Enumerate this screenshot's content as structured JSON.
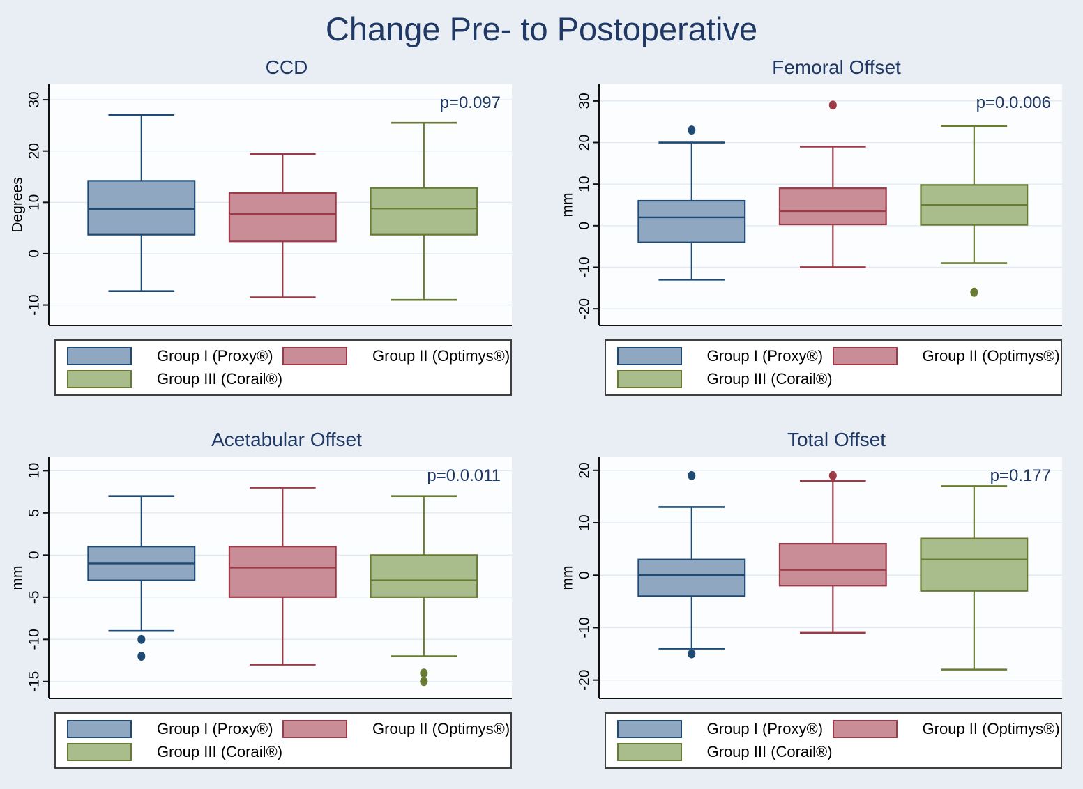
{
  "page": {
    "title": "Change Pre- to Postoperative"
  },
  "colors": {
    "background": "#e9eef4",
    "plot_background": "#fcfdff",
    "gridline": "#e1e9f2",
    "axis": "#111111",
    "title_text": "#203864",
    "tick_text": "#000000",
    "groups": [
      {
        "name": "Group I (Proxy®)",
        "fill": "#8fa7c0",
        "stroke": "#1f4a73"
      },
      {
        "name": "Group II (Optimys®)",
        "fill": "#c88d96",
        "stroke": "#9d3a48"
      },
      {
        "name": "Group III (Corail®)",
        "fill": "#a9bc8b",
        "stroke": "#687b33"
      }
    ]
  },
  "legend": {
    "items": [
      {
        "label": "Group I (Proxy®)"
      },
      {
        "label": "Group II (Optimys®)"
      },
      {
        "label": "Group III (Corail®)"
      }
    ]
  },
  "chart_data": [
    {
      "type": "box",
      "title": "CCD",
      "ylabel": "Degrees",
      "p_label": "p=0.097",
      "ylim": [
        -14,
        33
      ],
      "yticks": [
        -10,
        0,
        10,
        20,
        30
      ],
      "grid": true,
      "legend_position": "bottom",
      "series": [
        {
          "name": "Group I (Proxy®)",
          "whislo": -7.3,
          "q1": 3.7,
          "med": 8.7,
          "q3": 14.2,
          "whishi": 27,
          "outliers": []
        },
        {
          "name": "Group II (Optimys®)",
          "whislo": -8.5,
          "q1": 2.4,
          "med": 7.7,
          "q3": 11.8,
          "whishi": 19.4,
          "outliers": []
        },
        {
          "name": "Group III (Corail®)",
          "whislo": -9,
          "q1": 3.7,
          "med": 8.8,
          "q3": 12.8,
          "whishi": 25.5,
          "outliers": []
        }
      ]
    },
    {
      "type": "box",
      "title": "Femoral Offset",
      "ylabel": "mm",
      "p_label": "p=0.0.006",
      "ylim": [
        -24,
        34
      ],
      "yticks": [
        -20,
        -10,
        0,
        10,
        20,
        30
      ],
      "grid": true,
      "legend_position": "bottom",
      "series": [
        {
          "name": "Group I (Proxy®)",
          "whislo": -13,
          "q1": -4,
          "med": 2,
          "q3": 6,
          "whishi": 20,
          "outliers": [
            23
          ]
        },
        {
          "name": "Group II (Optimys®)",
          "whislo": -10,
          "q1": 0.3,
          "med": 3.5,
          "q3": 9,
          "whishi": 19,
          "outliers": [
            29
          ]
        },
        {
          "name": "Group III (Corail®)",
          "whislo": -9,
          "q1": 0.2,
          "med": 5,
          "q3": 9.8,
          "whishi": 24,
          "outliers": [
            -16
          ]
        }
      ]
    },
    {
      "type": "box",
      "title": "Acetabular Offset",
      "ylabel": "mm",
      "p_label": "p=0.0.011",
      "ylim": [
        -17,
        11.6
      ],
      "yticks": [
        -15,
        -10,
        -5,
        0,
        5,
        10
      ],
      "grid": true,
      "legend_position": "bottom",
      "series": [
        {
          "name": "Group I (Proxy®)",
          "whislo": -9,
          "q1": -3,
          "med": -1,
          "q3": 1,
          "whishi": 7,
          "outliers": [
            -10,
            -12
          ]
        },
        {
          "name": "Group II (Optimys®)",
          "whislo": -13,
          "q1": -5,
          "med": -1.5,
          "q3": 1,
          "whishi": 8,
          "outliers": []
        },
        {
          "name": "Group III (Corail®)",
          "whislo": -12,
          "q1": -5,
          "med": -3,
          "q3": 0,
          "whishi": 7,
          "outliers": [
            -14,
            -15
          ]
        }
      ]
    },
    {
      "type": "box",
      "title": "Total Offset",
      "ylabel": "mm",
      "p_label": "p=0.177",
      "ylim": [
        -23.5,
        22.5
      ],
      "yticks": [
        -20,
        -10,
        0,
        10,
        20
      ],
      "grid": true,
      "legend_position": "bottom",
      "series": [
        {
          "name": "Group I (Proxy®)",
          "whislo": -14,
          "q1": -4,
          "med": 0,
          "q3": 3,
          "whishi": 13,
          "outliers": [
            19,
            -15
          ]
        },
        {
          "name": "Group II (Optimys®)",
          "whislo": -11,
          "q1": -2,
          "med": 1,
          "q3": 6,
          "whishi": 18,
          "outliers": [
            19
          ]
        },
        {
          "name": "Group III (Corail®)",
          "whislo": -18,
          "q1": -3,
          "med": 3,
          "q3": 7,
          "whishi": 17,
          "outliers": []
        }
      ]
    }
  ]
}
